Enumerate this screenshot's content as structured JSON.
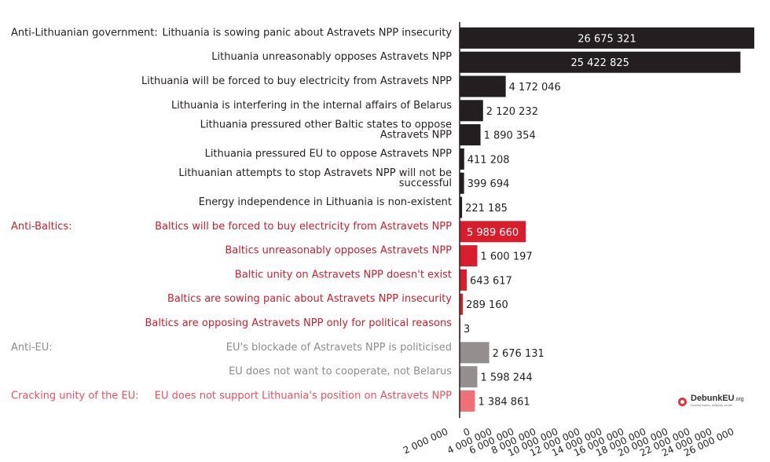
{
  "chart_data": {
    "type": "bar",
    "orientation": "horizontal",
    "xlim": [
      0,
      26675321
    ],
    "ticks": [
      "2 000 000",
      "0",
      "4 000 000",
      "6 000 000",
      "8 000 000",
      "10 000 000",
      "12 000 000",
      "14 000 000",
      "16 000 000",
      "18 000 000",
      "20 000 000",
      "22 000 000",
      "24 000 000",
      "26 000 000"
    ],
    "groups": [
      {
        "name": "Anti-Lithuanian government:",
        "color": "#231f20",
        "label_color": "#231f20",
        "items": [
          {
            "label": "Lithuania is sowing panic about Astravets NPP insecurity",
            "value": 26675321,
            "value_label": "26 675 321"
          },
          {
            "label": "Lithuania unreasonably opposes Astravets NPP",
            "value": 25422825,
            "value_label": "25 422 825"
          },
          {
            "label": "Lithuania will be forced to buy electricity from Astravets NPP",
            "value": 4172046,
            "value_label": "4 172 046"
          },
          {
            "label": "Lithuania is interfering in the internal affairs of Belarus",
            "value": 2120232,
            "value_label": "2 120 232"
          },
          {
            "label": "Lithuania pressured other Baltic states to oppose Astravets NPP",
            "value": 1890354,
            "value_label": "1 890 354"
          },
          {
            "label": "Lithuania pressured EU to oppose Astravets NPP",
            "value": 411208,
            "value_label": "411 208"
          },
          {
            "label": "Lithuanian attempts to stop Astravets NPP will not be successful",
            "value": 399694,
            "value_label": "399 694"
          },
          {
            "label": "Energy independence in Lithuania is non-existent",
            "value": 221185,
            "value_label": "221 185"
          }
        ]
      },
      {
        "name": "Anti-Baltics:",
        "color": "#d81e2c",
        "label_color": "#c8202e",
        "items": [
          {
            "label": "Baltics will be forced to buy electricity from Astravets NPP",
            "value": 5989660,
            "value_label": "5 989 660"
          },
          {
            "label": "Baltics unreasonably opposes Astravets NPP",
            "value": 1600197,
            "value_label": "1 600 197"
          },
          {
            "label": "Baltic unity on Astravets NPP doesn't exist",
            "value": 643617,
            "value_label": "643 617"
          },
          {
            "label": "Baltics are sowing panic about Astravets NPP insecurity",
            "value": 289160,
            "value_label": "289 160"
          },
          {
            "label": "Baltics are opposing Astravets NPP only for political reasons",
            "value": 3,
            "value_label": "3"
          }
        ]
      },
      {
        "name": "Anti-EU:",
        "color": "#948e8f",
        "label_color": "#8c8c8c",
        "items": [
          {
            "label": "EU's blockade of Astravets NPP is politicised",
            "value": 2676131,
            "value_label": "2 676 131"
          },
          {
            "label": "EU does not want to cooperate, not Belarus",
            "value": 1598244,
            "value_label": "1 598 244"
          }
        ]
      },
      {
        "name": "Cracking unity of the EU:",
        "color": "#f0707a",
        "label_color": "#e8505c",
        "items": [
          {
            "label": "EU does not support Lithuania's position on Astravets NPP",
            "value": 1384861,
            "value_label": "1 384 861"
          }
        ]
      }
    ]
  },
  "logo": {
    "brand": "DebunkEU",
    "brand_suffix": ".org",
    "tagline": "Disinformation analysis center",
    "icon": "debunk-logo-icon"
  }
}
